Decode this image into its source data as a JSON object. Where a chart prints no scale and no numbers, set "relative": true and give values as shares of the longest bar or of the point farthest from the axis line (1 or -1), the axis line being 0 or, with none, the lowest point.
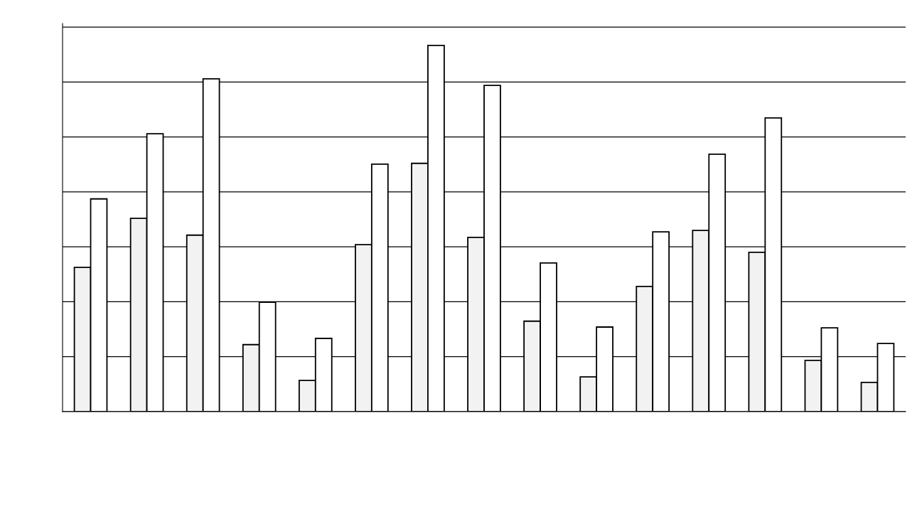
{
  "chart_data": {
    "type": "bar",
    "relative": true,
    "grid": "y",
    "categories": [
      null,
      null,
      null,
      null,
      null,
      null,
      null,
      null,
      null,
      null,
      null,
      null,
      null,
      null,
      null
    ],
    "series": [
      {
        "color": "#f2f2f2",
        "values": [
          0.394,
          0.528,
          0.482,
          0.183,
          0.085,
          0.456,
          0.678,
          0.476,
          0.247,
          0.095,
          0.342,
          0.495,
          0.435,
          0.14,
          0.08
        ]
      },
      {
        "color": "#ffffff",
        "values": [
          0.581,
          0.759,
          0.909,
          0.299,
          0.2,
          0.676,
          1,
          0.891,
          0.406,
          0.231,
          0.491,
          0.703,
          0.802,
          0.229,
          0.186
        ]
      }
    ]
  }
}
